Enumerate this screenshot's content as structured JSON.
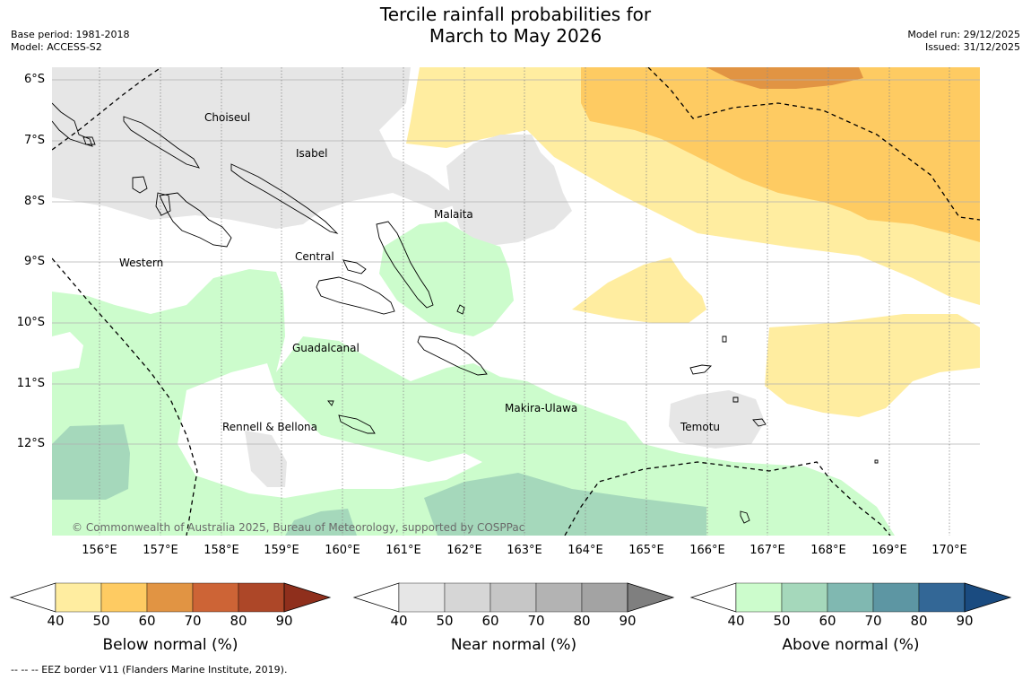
{
  "title_line1": "Tercile rainfall probabilities for",
  "title_line2": "March to May 2026",
  "meta_left": {
    "base_period": "Base period: 1981-2018",
    "model": "Model: ACCESS-S2"
  },
  "meta_right": {
    "model_run": "Model run: 29/12/2025",
    "issued": "Issued: 31/12/2025"
  },
  "latitudes": [
    "6°S",
    "7°S",
    "8°S",
    "9°S",
    "10°S",
    "11°S",
    "12°S"
  ],
  "longitudes": [
    "156°E",
    "157°E",
    "158°E",
    "159°E",
    "160°E",
    "161°E",
    "162°E",
    "163°E",
    "164°E",
    "165°E",
    "166°E",
    "167°E",
    "168°E",
    "169°E",
    "170°E"
  ],
  "regions": {
    "choiseul": "Choiseul",
    "isabel": "Isabel",
    "malaita": "Malaita",
    "western": "Western",
    "central": "Central",
    "guadalcanal": "Guadalcanal",
    "makira": "Makira-Ulawa",
    "rennell": "Rennell & Bellona",
    "temotu": "Temotu"
  },
  "copyright": "© Commonwealth of Australia 2025, Bureau of Meteorology, supported by COSPPac",
  "colorbars": {
    "below": {
      "label": "Below normal (%)",
      "colors": [
        "#ffeda0",
        "#fecb62",
        "#e19443",
        "#cd6436",
        "#ad4728",
        "#8f2f1c"
      ]
    },
    "near": {
      "label": "Near normal (%)",
      "colors": [
        "#e6e6e6",
        "#d6d6d6",
        "#c6c6c6",
        "#b3b3b3",
        "#a3a3a3",
        "#7f7f7f"
      ]
    },
    "above": {
      "label": "Above normal (%)",
      "colors": [
        "#ccfccc",
        "#a5d8bb",
        "#80b8b1",
        "#5d96a3",
        "#336796",
        "#1a4b80"
      ]
    },
    "ticks": [
      "40",
      "50",
      "60",
      "70",
      "80",
      "90"
    ]
  },
  "footnote": "--  --  -- EEZ border V11 (Flanders Marine Institute, 2019)."
}
